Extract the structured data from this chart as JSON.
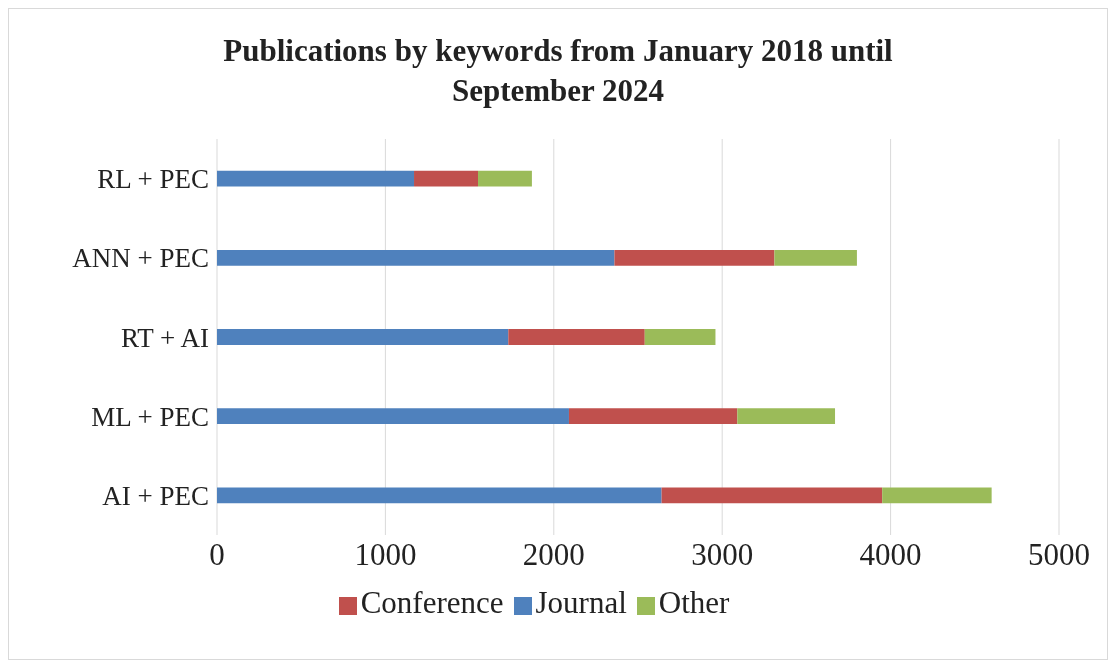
{
  "chart_data": {
    "type": "bar",
    "orientation": "horizontal",
    "stacked": true,
    "title": "Publications by keywords from January 2018 until September 2024",
    "categories": [
      "RL + PEC",
      "ANN + PEC",
      "RT + AI",
      "ML + PEC",
      "AI + PEC"
    ],
    "series": [
      {
        "name": "Journal",
        "color": "#4f81bd",
        "values": [
          1170,
          2360,
          1730,
          2090,
          2640
        ]
      },
      {
        "name": "Conference",
        "color": "#c0504d",
        "values": [
          380,
          950,
          810,
          1000,
          1310
        ]
      },
      {
        "name": "Other",
        "color": "#9bbb59",
        "values": [
          320,
          490,
          420,
          580,
          650
        ]
      }
    ],
    "xlim": [
      0,
      5000
    ],
    "xticks": [
      0,
      1000,
      2000,
      3000,
      4000,
      5000
    ],
    "grid": "x",
    "legend": "bottom"
  }
}
